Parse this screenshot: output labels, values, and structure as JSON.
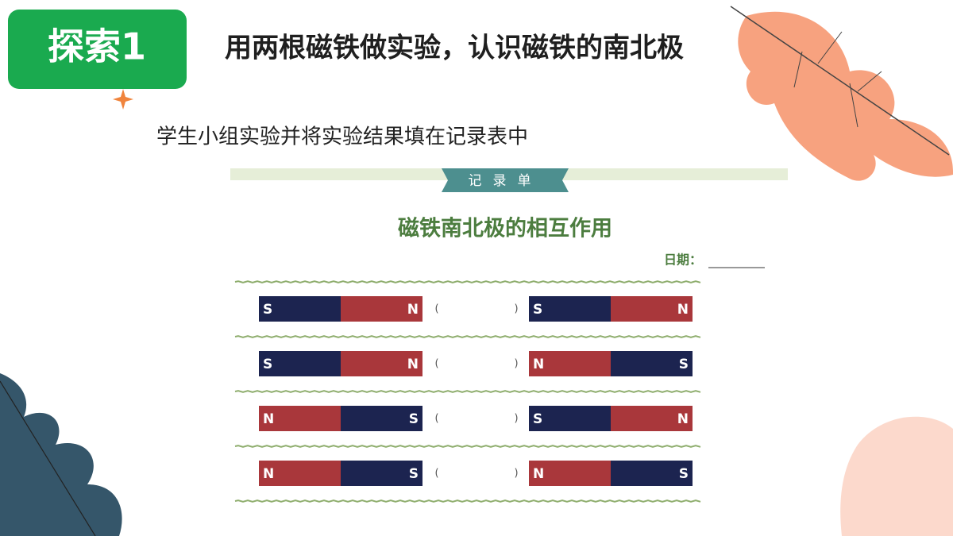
{
  "header": {
    "badge": "探索1",
    "title": "用两根磁铁做实验，认识磁铁的南北极"
  },
  "subtitle": "学生小组实验并将实验结果填在记录表中",
  "record": {
    "label": "记录单",
    "title": "磁铁南北极的相互作用",
    "date_label": "日期：",
    "paren_open": "(",
    "paren_close": ")",
    "pole_colors": {
      "S": "#1c2450",
      "N": "#a9373b"
    },
    "rows": [
      {
        "left": [
          "S",
          "N"
        ],
        "right": [
          "S",
          "N"
        ]
      },
      {
        "left": [
          "S",
          "N"
        ],
        "right": [
          "N",
          "S"
        ]
      },
      {
        "left": [
          "N",
          "S"
        ],
        "right": [
          "S",
          "N"
        ]
      },
      {
        "left": [
          "N",
          "S"
        ],
        "right": [
          "N",
          "S"
        ]
      }
    ]
  }
}
